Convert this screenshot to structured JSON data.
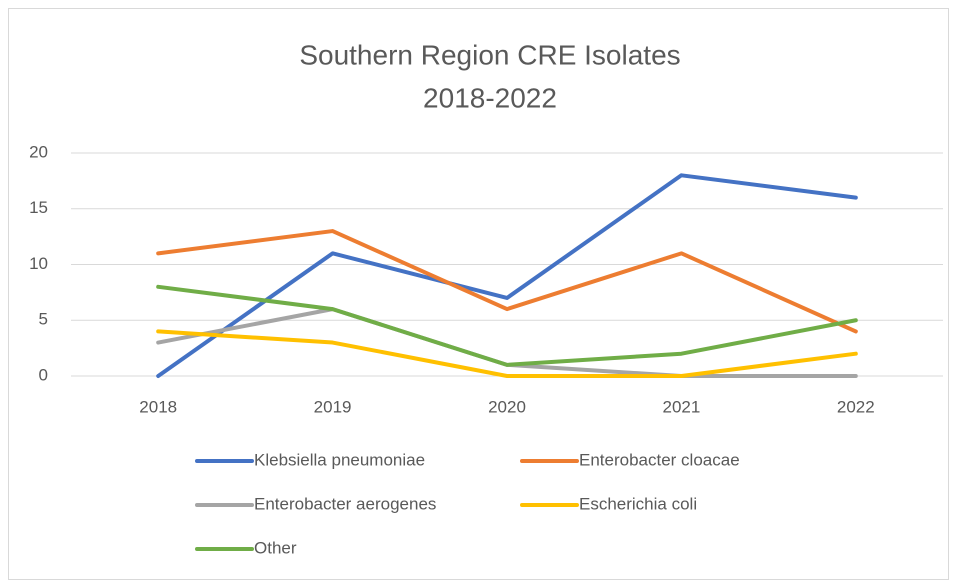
{
  "chart_data": {
    "type": "line",
    "title": "Southern Region CRE Isolates",
    "subtitle": "2018-2022",
    "categories": [
      "2018",
      "2019",
      "2020",
      "2021",
      "2022"
    ],
    "series": [
      {
        "name": "Klebsiella pneumoniae",
        "color": "#4472c4",
        "values": [
          0,
          11,
          7,
          18,
          16
        ]
      },
      {
        "name": "Enterobacter cloacae",
        "color": "#ed7d31",
        "values": [
          11,
          13,
          6,
          11,
          4
        ]
      },
      {
        "name": "Enterobacter aerogenes",
        "color": "#a5a5a5",
        "values": [
          3,
          6,
          1,
          0,
          0
        ]
      },
      {
        "name": "Escherichia coli",
        "color": "#ffc000",
        "values": [
          4,
          3,
          0,
          0,
          2
        ]
      },
      {
        "name": "Other",
        "color": "#70ad47",
        "values": [
          8,
          6,
          1,
          2,
          5
        ]
      }
    ],
    "ylim": [
      0,
      20
    ],
    "yticks": [
      0,
      5,
      10,
      15,
      20
    ],
    "grid": true,
    "legend": "bottom"
  }
}
